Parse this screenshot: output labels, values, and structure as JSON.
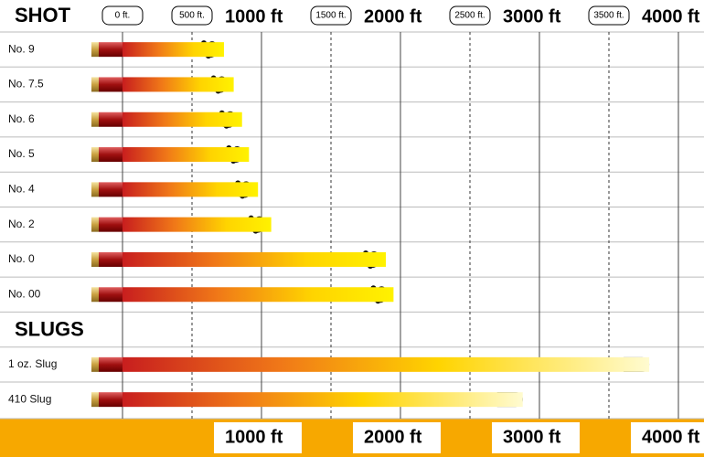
{
  "chart_data": {
    "type": "bar",
    "orientation": "horizontal",
    "groups": [
      {
        "name": "SHOT",
        "categories": [
          "No. 9",
          "No. 7.5",
          "No. 6",
          "No. 5",
          "No. 4",
          "No. 2",
          "No. 0",
          "No. 00"
        ],
        "values": [
          730,
          800,
          860,
          910,
          975,
          1070,
          1895,
          1950
        ],
        "marker": "pellets"
      },
      {
        "name": "SLUGS",
        "categories": [
          "1 oz. Slug",
          "410 Slug"
        ],
        "values": [
          3790,
          2880
        ],
        "marker": "slug"
      }
    ],
    "xlim": [
      0,
      4200
    ],
    "xticks": [
      {
        "value": 0,
        "label": "0 ft."
      },
      {
        "value": 500,
        "label": "500 ft."
      },
      {
        "value": 1000,
        "label": "1000 ft"
      },
      {
        "value": 1500,
        "label": "1500 ft."
      },
      {
        "value": 2000,
        "label": "2000 ft"
      },
      {
        "value": 2500,
        "label": "2500 ft."
      },
      {
        "value": 3000,
        "label": "3000 ft"
      },
      {
        "value": 3500,
        "label": "3500 ft."
      },
      {
        "value": 4000,
        "label": "4000 ft"
      }
    ],
    "grid": true
  }
}
